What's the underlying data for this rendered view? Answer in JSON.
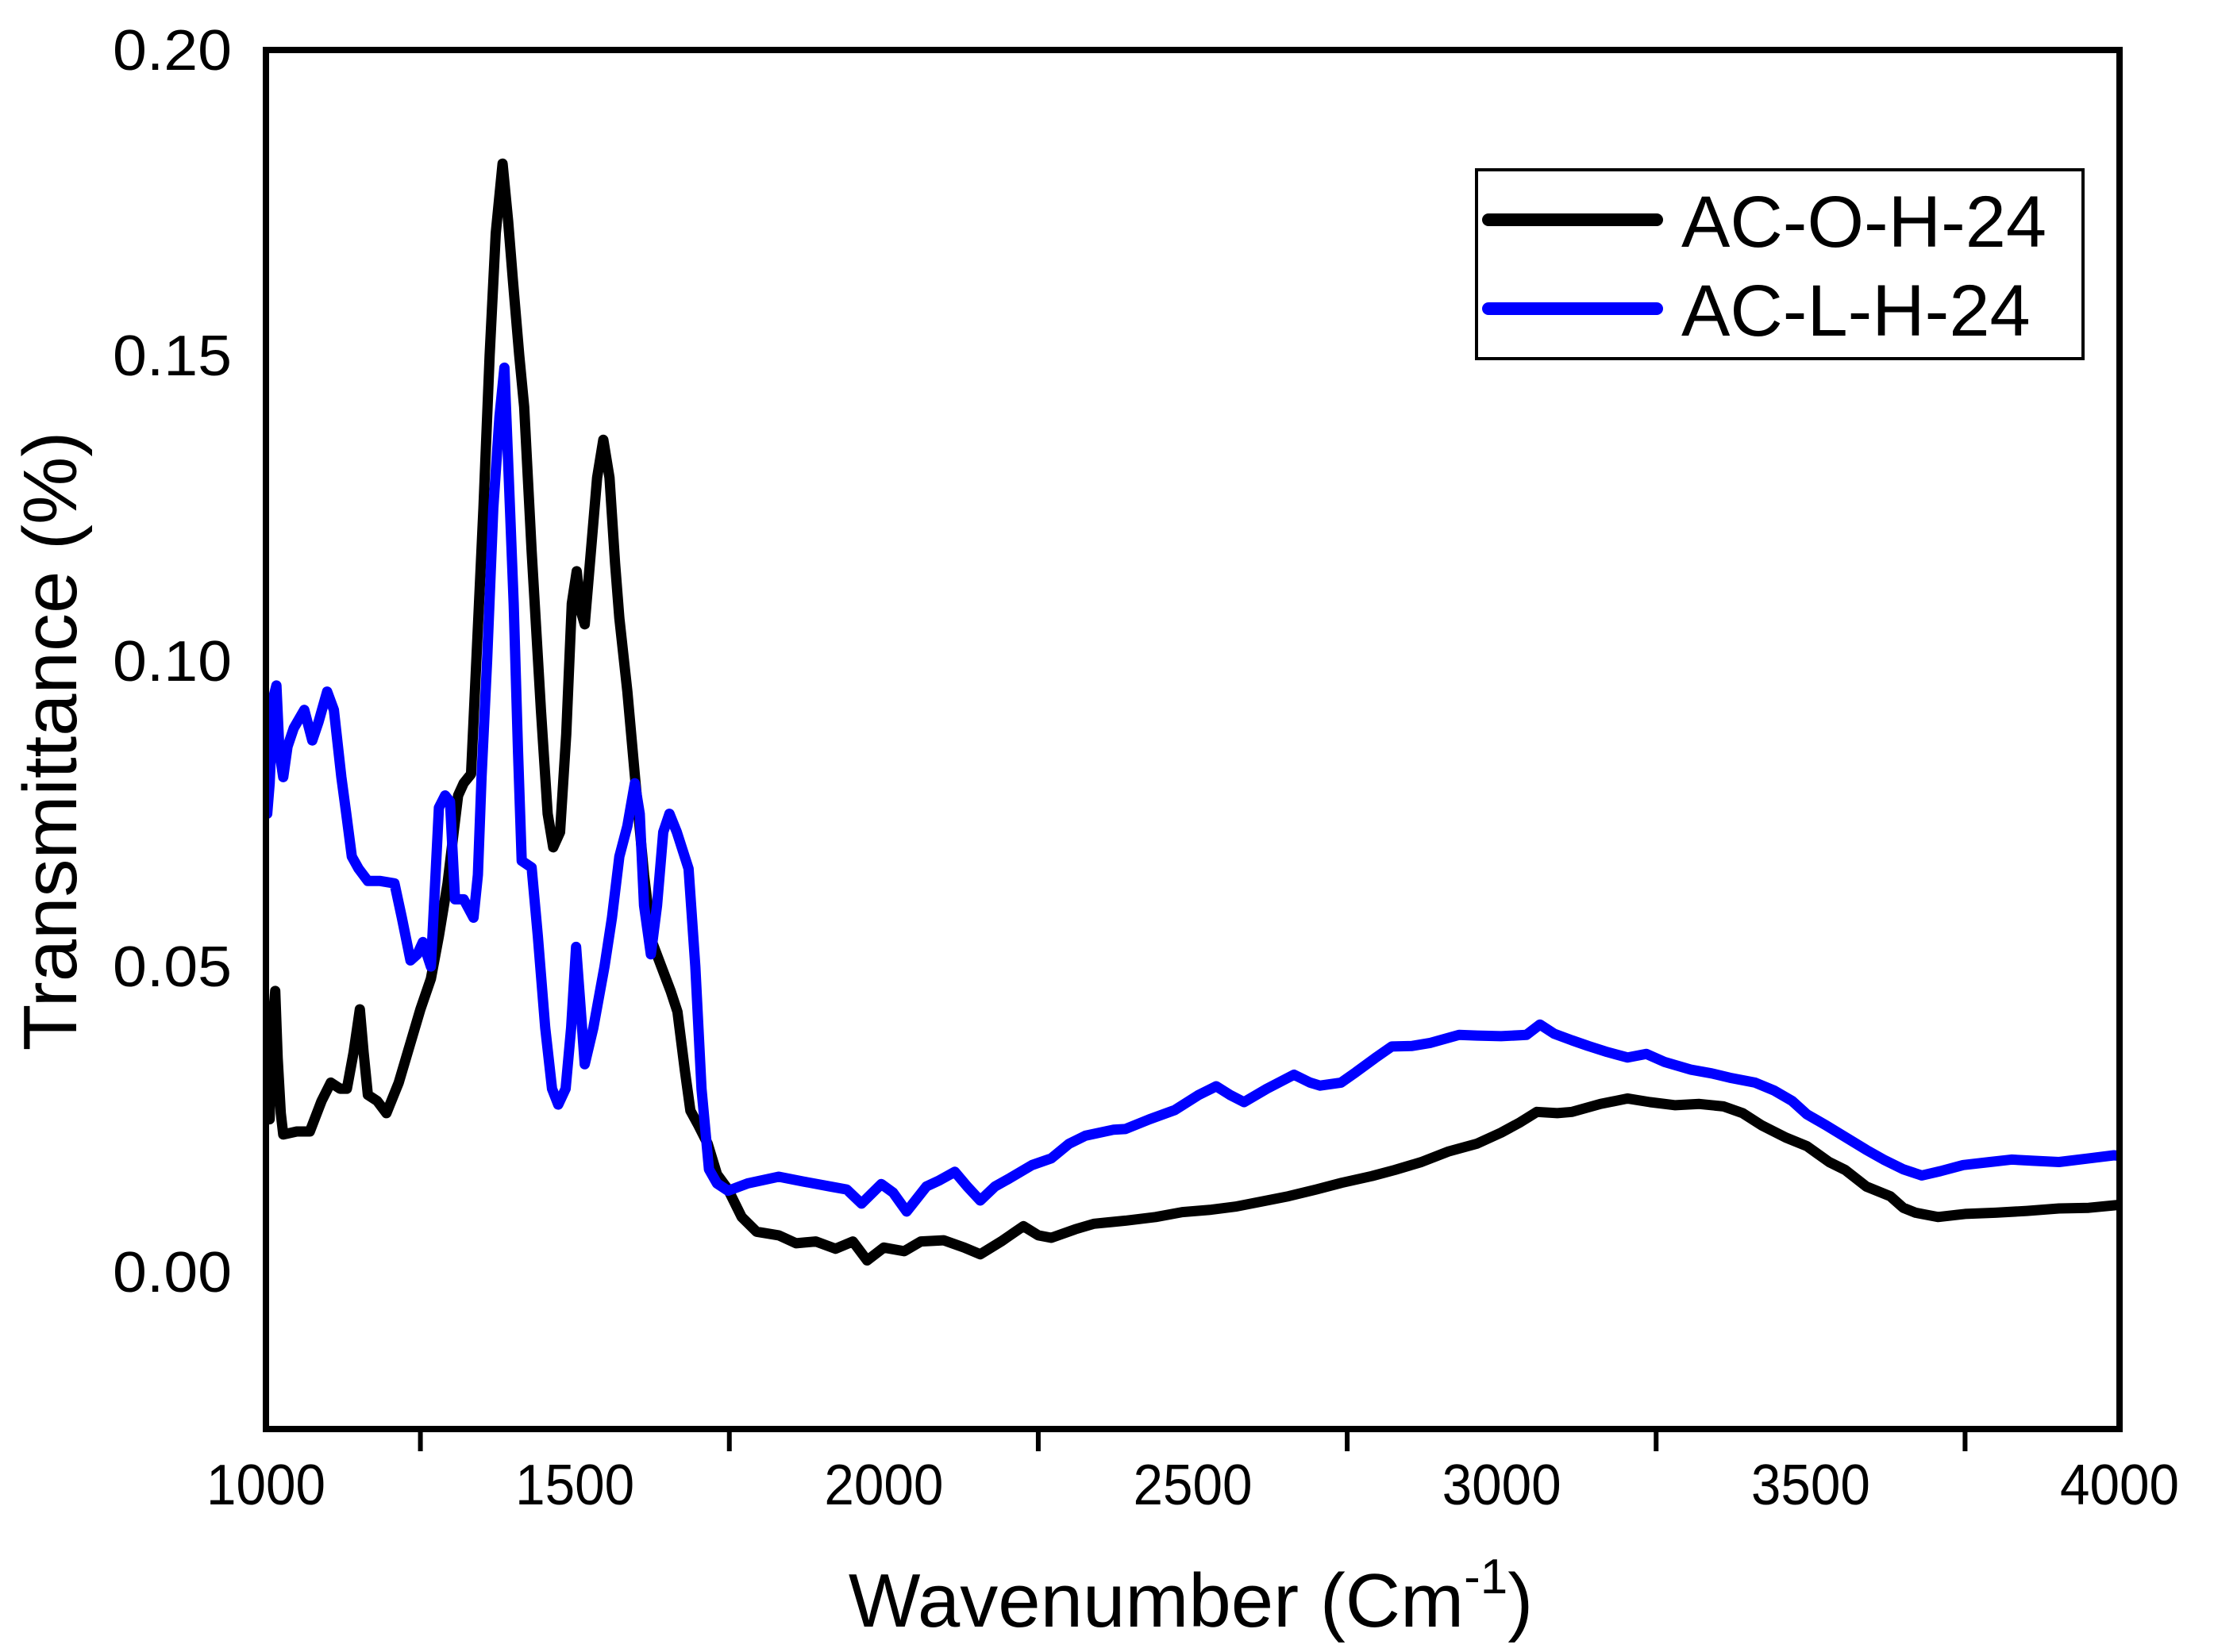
{
  "chart_data": {
    "type": "line",
    "title": "",
    "xlabel": "Wavenumber (Cm",
    "xlabel_sup": "-1",
    "xlabel_close": ")",
    "ylabel": "Transmittance (%)",
    "xlim": [
      1000,
      4000
    ],
    "ylim": [
      -0.0257,
      0.2
    ],
    "grid": false,
    "legend_position": "upper right",
    "x_tick_labels": [
      "1000",
      "1500",
      "2000",
      "2500",
      "3000",
      "3500",
      "4000"
    ],
    "x_tick_label_values": [
      1000,
      1500,
      2000,
      2500,
      3000,
      3500,
      4000
    ],
    "x_tick_marks": [
      1250,
      1750,
      2250,
      2750,
      3250,
      3750
    ],
    "y_tick_labels": [
      "0.00",
      "0.05",
      "0.10",
      "0.15",
      "0.20"
    ],
    "y_tick_label_values": [
      0.0,
      0.05,
      0.1,
      0.15,
      0.2
    ],
    "series": [
      {
        "name": "AC-O-H-24",
        "color": "#000000",
        "points": [
          [
            1003,
            0.027
          ],
          [
            1006,
            0.025
          ],
          [
            1010,
            0.04
          ],
          [
            1015,
            0.046
          ],
          [
            1019,
            0.035
          ],
          [
            1024,
            0.026
          ],
          [
            1028,
            0.0225
          ],
          [
            1050,
            0.023
          ],
          [
            1071,
            0.023
          ],
          [
            1090,
            0.028
          ],
          [
            1105,
            0.031
          ],
          [
            1120,
            0.03
          ],
          [
            1131,
            0.03
          ],
          [
            1142,
            0.036
          ],
          [
            1152,
            0.043
          ],
          [
            1158,
            0.036
          ],
          [
            1165,
            0.029
          ],
          [
            1180,
            0.028
          ],
          [
            1195,
            0.026
          ],
          [
            1215,
            0.031
          ],
          [
            1234,
            0.0375
          ],
          [
            1250,
            0.043
          ],
          [
            1267,
            0.048
          ],
          [
            1280,
            0.055
          ],
          [
            1294,
            0.0636
          ],
          [
            1305,
            0.073
          ],
          [
            1311,
            0.078
          ],
          [
            1320,
            0.08
          ],
          [
            1332,
            0.0815
          ],
          [
            1341,
            0.101
          ],
          [
            1352,
            0.125
          ],
          [
            1362,
            0.15
          ],
          [
            1372,
            0.17
          ],
          [
            1383,
            0.1814
          ],
          [
            1392,
            0.172
          ],
          [
            1400,
            0.162
          ],
          [
            1410,
            0.15
          ],
          [
            1418,
            0.1416
          ],
          [
            1430,
            0.118
          ],
          [
            1445,
            0.092
          ],
          [
            1456,
            0.075
          ],
          [
            1465,
            0.0695
          ],
          [
            1476,
            0.072
          ],
          [
            1486,
            0.088
          ],
          [
            1495,
            0.1094
          ],
          [
            1503,
            0.1147
          ],
          [
            1510,
            0.108
          ],
          [
            1516,
            0.106
          ],
          [
            1526,
            0.118
          ],
          [
            1536,
            0.13
          ],
          [
            1546,
            0.1362
          ],
          [
            1556,
            0.13
          ],
          [
            1565,
            0.116
          ],
          [
            1572,
            0.107
          ],
          [
            1585,
            0.095
          ],
          [
            1597,
            0.0813
          ],
          [
            1612,
            0.065
          ],
          [
            1625,
            0.054
          ],
          [
            1640,
            0.05
          ],
          [
            1655,
            0.046
          ],
          [
            1666,
            0.0426
          ],
          [
            1678,
            0.033
          ],
          [
            1687,
            0.0264
          ],
          [
            1700,
            0.024
          ],
          [
            1715,
            0.021
          ],
          [
            1730,
            0.016
          ],
          [
            1748,
            0.0135
          ],
          [
            1770,
            0.009
          ],
          [
            1794,
            0.0066
          ],
          [
            1830,
            0.006
          ],
          [
            1858,
            0.0047
          ],
          [
            1890,
            0.005
          ],
          [
            1922,
            0.0038
          ],
          [
            1950,
            0.005
          ],
          [
            1973,
            0.0019
          ],
          [
            2000,
            0.004
          ],
          [
            2033,
            0.0034
          ],
          [
            2060,
            0.005
          ],
          [
            2097,
            0.0052
          ],
          [
            2130,
            0.004
          ],
          [
            2156,
            0.0029
          ],
          [
            2190,
            0.005
          ],
          [
            2226,
            0.0075
          ],
          [
            2250,
            0.006
          ],
          [
            2271,
            0.0056
          ],
          [
            2310,
            0.007
          ],
          [
            2340,
            0.0079
          ],
          [
            2391,
            0.0084
          ],
          [
            2440,
            0.009
          ],
          [
            2483,
            0.0098
          ],
          [
            2530,
            0.0102
          ],
          [
            2569,
            0.0107
          ],
          [
            2610,
            0.0115
          ],
          [
            2655,
            0.0124
          ],
          [
            2700,
            0.0135
          ],
          [
            2741,
            0.0146
          ],
          [
            2790,
            0.0157
          ],
          [
            2827,
            0.0167
          ],
          [
            2870,
            0.018
          ],
          [
            2913,
            0.0197
          ],
          [
            2960,
            0.021
          ],
          [
            2999,
            0.0228
          ],
          [
            3030,
            0.0245
          ],
          [
            3057,
            0.0262
          ],
          [
            3090,
            0.026
          ],
          [
            3114,
            0.0262
          ],
          [
            3160,
            0.0275
          ],
          [
            3204,
            0.0284
          ],
          [
            3240,
            0.0278
          ],
          [
            3281,
            0.0273
          ],
          [
            3320,
            0.0275
          ],
          [
            3359,
            0.0271
          ],
          [
            3390,
            0.026
          ],
          [
            3421,
            0.024
          ],
          [
            3460,
            0.022
          ],
          [
            3494,
            0.0206
          ],
          [
            3530,
            0.018
          ],
          [
            3556,
            0.0167
          ],
          [
            3590,
            0.014
          ],
          [
            3629,
            0.0124
          ],
          [
            3650,
            0.0105
          ],
          [
            3670,
            0.0097
          ],
          [
            3706,
            0.009
          ],
          [
            3750,
            0.0095
          ],
          [
            3799,
            0.0097
          ],
          [
            3850,
            0.01
          ],
          [
            3902,
            0.0104
          ],
          [
            3950,
            0.0105
          ],
          [
            4000,
            0.011
          ]
        ]
      },
      {
        "name": "AC-L-H-24",
        "color": "#0000ff",
        "points": [
          [
            1002,
            0.075
          ],
          [
            1006,
            0.08
          ],
          [
            1012,
            0.094
          ],
          [
            1017,
            0.096
          ],
          [
            1022,
            0.085
          ],
          [
            1028,
            0.081
          ],
          [
            1035,
            0.086
          ],
          [
            1045,
            0.089
          ],
          [
            1062,
            0.092
          ],
          [
            1075,
            0.087
          ],
          [
            1085,
            0.09
          ],
          [
            1099,
            0.095
          ],
          [
            1110,
            0.092
          ],
          [
            1122,
            0.081
          ],
          [
            1130,
            0.075
          ],
          [
            1139,
            0.068
          ],
          [
            1150,
            0.066
          ],
          [
            1165,
            0.064
          ],
          [
            1185,
            0.064
          ],
          [
            1208,
            0.0636
          ],
          [
            1220,
            0.058
          ],
          [
            1234,
            0.051
          ],
          [
            1245,
            0.052
          ],
          [
            1254,
            0.054
          ],
          [
            1267,
            0.05
          ],
          [
            1273,
            0.062
          ],
          [
            1280,
            0.076
          ],
          [
            1290,
            0.078
          ],
          [
            1298,
            0.077
          ],
          [
            1306,
            0.061
          ],
          [
            1320,
            0.061
          ],
          [
            1336,
            0.058
          ],
          [
            1343,
            0.065
          ],
          [
            1349,
            0.081
          ],
          [
            1358,
            0.1
          ],
          [
            1368,
            0.125
          ],
          [
            1378,
            0.14
          ],
          [
            1386,
            0.148
          ],
          [
            1393,
            0.13
          ],
          [
            1401,
            0.1094
          ],
          [
            1408,
            0.085
          ],
          [
            1414,
            0.0673
          ],
          [
            1430,
            0.0662
          ],
          [
            1440,
            0.055
          ],
          [
            1452,
            0.04
          ],
          [
            1463,
            0.03
          ],
          [
            1473,
            0.0274
          ],
          [
            1485,
            0.03
          ],
          [
            1494,
            0.04
          ],
          [
            1502,
            0.0532
          ],
          [
            1508,
            0.045
          ],
          [
            1516,
            0.034
          ],
          [
            1530,
            0.04
          ],
          [
            1548,
            0.05
          ],
          [
            1560,
            0.058
          ],
          [
            1572,
            0.068
          ],
          [
            1585,
            0.073
          ],
          [
            1597,
            0.08
          ],
          [
            1605,
            0.075
          ],
          [
            1612,
            0.06
          ],
          [
            1623,
            0.052
          ],
          [
            1633,
            0.06
          ],
          [
            1643,
            0.072
          ],
          [
            1653,
            0.075
          ],
          [
            1665,
            0.072
          ],
          [
            1684,
            0.066
          ],
          [
            1695,
            0.05
          ],
          [
            1705,
            0.03
          ],
          [
            1717,
            0.0168
          ],
          [
            1730,
            0.0145
          ],
          [
            1748,
            0.0133
          ],
          [
            1780,
            0.0145
          ],
          [
            1830,
            0.0156
          ],
          [
            1870,
            0.0148
          ],
          [
            1913,
            0.014
          ],
          [
            1940,
            0.0135
          ],
          [
            1964,
            0.0112
          ],
          [
            1996,
            0.0144
          ],
          [
            2015,
            0.013
          ],
          [
            2037,
            0.0099
          ],
          [
            2069,
            0.014
          ],
          [
            2090,
            0.015
          ],
          [
            2115,
            0.0164
          ],
          [
            2135,
            0.014
          ],
          [
            2156,
            0.0117
          ],
          [
            2180,
            0.014
          ],
          [
            2203,
            0.0153
          ],
          [
            2240,
            0.0175
          ],
          [
            2271,
            0.0186
          ],
          [
            2300,
            0.021
          ],
          [
            2326,
            0.0223
          ],
          [
            2372,
            0.0233
          ],
          [
            2391,
            0.0234
          ],
          [
            2430,
            0.025
          ],
          [
            2471,
            0.0265
          ],
          [
            2510,
            0.029
          ],
          [
            2538,
            0.0304
          ],
          [
            2560,
            0.029
          ],
          [
            2583,
            0.0278
          ],
          [
            2620,
            0.03
          ],
          [
            2664,
            0.0323
          ],
          [
            2690,
            0.031
          ],
          [
            2706,
            0.0305
          ],
          [
            2740,
            0.031
          ],
          [
            2764,
            0.0327
          ],
          [
            2795,
            0.035
          ],
          [
            2822,
            0.0369
          ],
          [
            2855,
            0.037
          ],
          [
            2885,
            0.0375
          ],
          [
            2931,
            0.0388
          ],
          [
            2960,
            0.0387
          ],
          [
            2999,
            0.0386
          ],
          [
            3040,
            0.0388
          ],
          [
            3062,
            0.0405
          ],
          [
            3085,
            0.039
          ],
          [
            3114,
            0.0379
          ],
          [
            3140,
            0.037
          ],
          [
            3171,
            0.036
          ],
          [
            3204,
            0.0351
          ],
          [
            3234,
            0.0357
          ],
          [
            3263,
            0.0344
          ],
          [
            3307,
            0.0331
          ],
          [
            3340,
            0.0325
          ],
          [
            3369,
            0.0318
          ],
          [
            3410,
            0.031
          ],
          [
            3441,
            0.0297
          ],
          [
            3470,
            0.028
          ],
          [
            3494,
            0.0258
          ],
          [
            3525,
            0.024
          ],
          [
            3556,
            0.0221
          ],
          [
            3590,
            0.02
          ],
          [
            3618,
            0.0184
          ],
          [
            3650,
            0.0168
          ],
          [
            3680,
            0.0158
          ],
          [
            3710,
            0.0165
          ],
          [
            3747,
            0.0175
          ],
          [
            3790,
            0.018
          ],
          [
            3825,
            0.0184
          ],
          [
            3860,
            0.0182
          ],
          [
            3902,
            0.018
          ],
          [
            3950,
            0.0186
          ],
          [
            3991,
            0.0191
          ],
          [
            4000,
            0.019
          ]
        ]
      }
    ]
  }
}
